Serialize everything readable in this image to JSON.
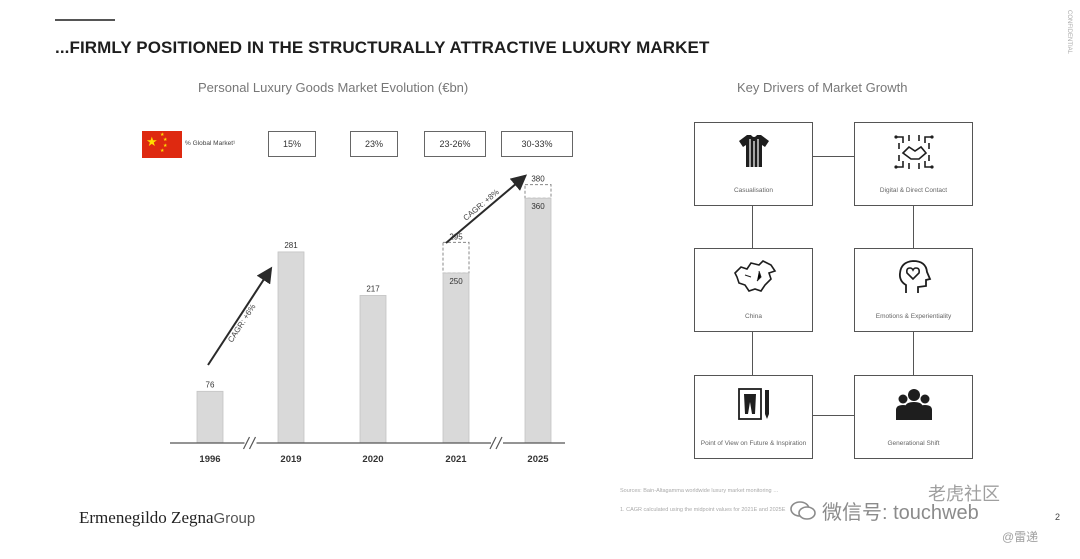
{
  "header": {
    "confidential": "CONFIDENTIAL",
    "title": "...FIRMLY POSITIONED IN THE STRUCTURALLY ATTRACTIVE LUXURY MARKET"
  },
  "global_market": {
    "label": "% Global Market¹",
    "values": [
      "15%",
      "23%",
      "23-26%",
      "30-33%"
    ]
  },
  "chart_data": {
    "type": "bar",
    "title": "Personal Luxury Goods Market Evolution (€bn)",
    "categories": [
      "1996",
      "2019",
      "2020",
      "2021",
      "2025"
    ],
    "values": [
      76,
      281,
      217,
      250,
      360
    ],
    "projected_top": [
      null,
      null,
      null,
      295,
      380
    ],
    "labels": [
      "76",
      "281",
      "217",
      "250",
      "360"
    ],
    "projected_labels": [
      "",
      "",
      "",
      "295",
      "380"
    ],
    "ylim": [
      0,
      400
    ],
    "axis_breaks_after": [
      "1996",
      "2021"
    ],
    "annotations": [
      "CAGR: +6%",
      "CAGR: +8%"
    ],
    "legend": "none"
  },
  "drivers": {
    "title": "Key Drivers of Market Growth",
    "items": [
      {
        "label": "Casualisation",
        "icon": "tshirt-icon"
      },
      {
        "label": "Digital & Direct Contact",
        "icon": "handshake-circuit-icon"
      },
      {
        "label": "China",
        "icon": "china-map-icon"
      },
      {
        "label": "Emotions & Experientiality",
        "icon": "head-heart-icon"
      },
      {
        "label": "Point of View on Future & Inspiration",
        "icon": "sketch-pencil-icon"
      },
      {
        "label": "Generational Shift",
        "icon": "people-group-icon"
      }
    ]
  },
  "footer": {
    "footnote_1": "Sources: Bain-Altagamma worldwide luxury market monitoring …",
    "footnote_2": "1. CAGR calculated using the midpoint values for 2021E and 2025E",
    "logo": "Ermenegildo Zegna",
    "logo_group": "Group",
    "page_number": "2",
    "watermark_wechat": "微信号: touchweb",
    "watermark_site": "老虎社区",
    "watermark_user": "@雷递"
  }
}
